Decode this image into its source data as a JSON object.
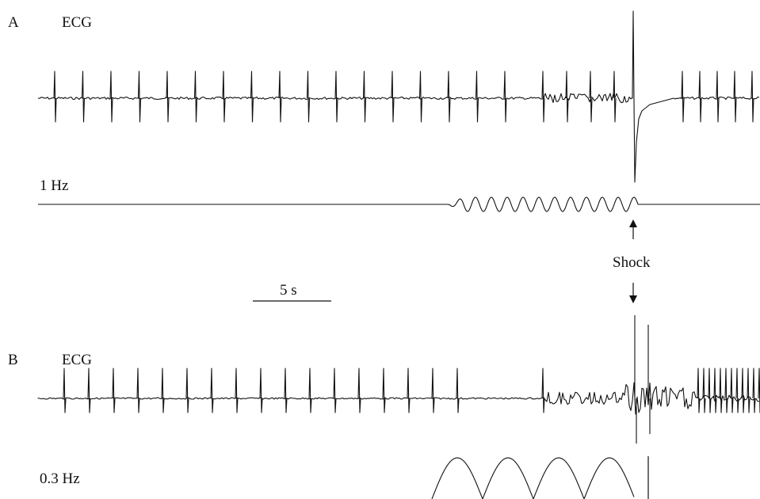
{
  "panels": [
    {
      "letter": "A",
      "ecg_label": "ECG",
      "stim_label": "1 Hz"
    },
    {
      "letter": "B",
      "ecg_label": "ECG",
      "stim_label": "0.3 Hz"
    }
  ],
  "annotations": {
    "shock_label": "Shock",
    "scale_bar_label": "5 s"
  },
  "colors": {
    "trace": "#111111",
    "background": "#ffffff"
  }
}
